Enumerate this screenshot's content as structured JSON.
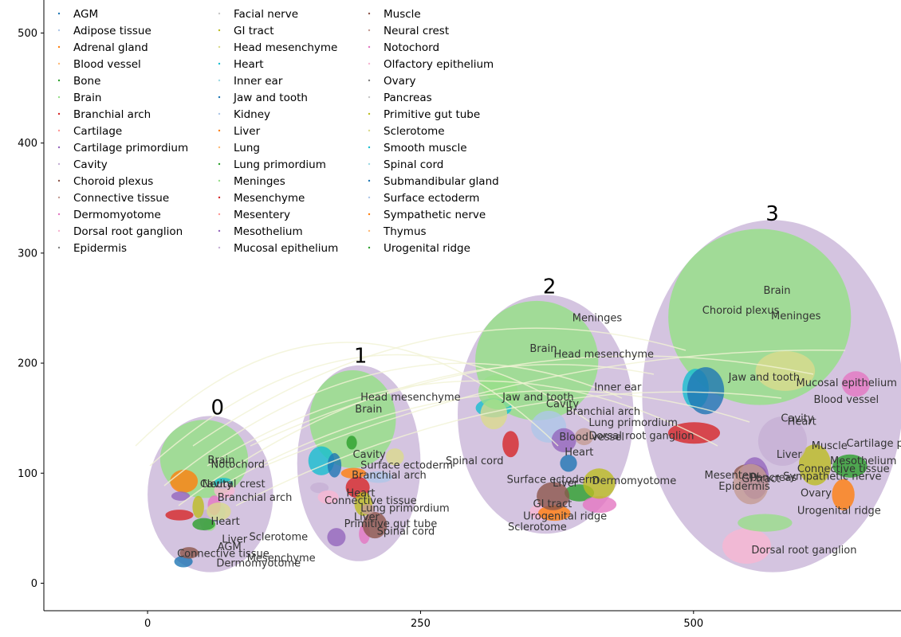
{
  "chart_data": {
    "type": "scatter",
    "title": "",
    "xlabel": "",
    "ylabel": "",
    "xlim": [
      -95,
      690
    ],
    "ylim": [
      -25,
      530
    ],
    "x_ticks": [
      0,
      250,
      500
    ],
    "y_ticks": [
      0,
      100,
      200,
      300,
      400,
      500
    ],
    "grid": false,
    "legend": {
      "placement": "top-left",
      "columns": 3,
      "entries": [
        {
          "name": "AGM",
          "color": "#1f77b4"
        },
        {
          "name": "Adipose tissue",
          "color": "#aec7e8"
        },
        {
          "name": "Adrenal gland",
          "color": "#ff7f0e"
        },
        {
          "name": "Blood vessel",
          "color": "#ffbb78"
        },
        {
          "name": "Bone",
          "color": "#2ca02c"
        },
        {
          "name": "Brain",
          "color": "#98df8a"
        },
        {
          "name": "Branchial arch",
          "color": "#d62728"
        },
        {
          "name": "Cartilage",
          "color": "#ff9896"
        },
        {
          "name": "Cartilage primordium",
          "color": "#9467bd"
        },
        {
          "name": "Cavity",
          "color": "#c5b0d5"
        },
        {
          "name": "Choroid plexus",
          "color": "#8c564b"
        },
        {
          "name": "Connective tissue",
          "color": "#c49c94"
        },
        {
          "name": "Dermomyotome",
          "color": "#e377c2"
        },
        {
          "name": "Dorsal root ganglion",
          "color": "#f7b6d2"
        },
        {
          "name": "Epidermis",
          "color": "#7f7f7f"
        },
        {
          "name": "Facial nerve",
          "color": "#c7c7c7"
        },
        {
          "name": "GI tract",
          "color": "#bcbd22"
        },
        {
          "name": "Head mesenchyme",
          "color": "#dbdb8d"
        },
        {
          "name": "Heart",
          "color": "#17becf"
        },
        {
          "name": "Inner ear",
          "color": "#9edae5"
        },
        {
          "name": "Jaw and tooth",
          "color": "#1f77b4"
        },
        {
          "name": "Kidney",
          "color": "#aec7e8"
        },
        {
          "name": "Liver",
          "color": "#ff7f0e"
        },
        {
          "name": "Lung",
          "color": "#ffbb78"
        },
        {
          "name": "Lung primordium",
          "color": "#2ca02c"
        },
        {
          "name": "Meninges",
          "color": "#98df8a"
        },
        {
          "name": "Mesenchyme",
          "color": "#d62728"
        },
        {
          "name": "Mesentery",
          "color": "#ff9896"
        },
        {
          "name": "Mesothelium",
          "color": "#9467bd"
        },
        {
          "name": "Mucosal epithelium",
          "color": "#c5b0d5"
        },
        {
          "name": "Muscle",
          "color": "#8c564b"
        },
        {
          "name": "Neural crest",
          "color": "#c49c94"
        },
        {
          "name": "Notochord",
          "color": "#e377c2"
        },
        {
          "name": "Olfactory epithelium",
          "color": "#f7b6d2"
        },
        {
          "name": "Ovary",
          "color": "#7f7f7f"
        },
        {
          "name": "Pancreas",
          "color": "#c7c7c7"
        },
        {
          "name": "Primitive gut tube",
          "color": "#bcbd22"
        },
        {
          "name": "Sclerotome",
          "color": "#dbdb8d"
        },
        {
          "name": "Smooth muscle",
          "color": "#17becf"
        },
        {
          "name": "Spinal cord",
          "color": "#9edae5"
        },
        {
          "name": "Submandibular gland",
          "color": "#1f77b4"
        },
        {
          "name": "Surface ectoderm",
          "color": "#aec7e8"
        },
        {
          "name": "Sympathetic nerve",
          "color": "#ff7f0e"
        },
        {
          "name": "Thymus",
          "color": "#ffbb78"
        },
        {
          "name": "Urogenital ridge",
          "color": "#2ca02c"
        }
      ]
    },
    "sections": [
      {
        "stage": "0",
        "label_x": 58,
        "label_y": 160,
        "x": [
          0,
          115
        ],
        "y": [
          10,
          152
        ]
      },
      {
        "stage": "1",
        "label_x": 189,
        "label_y": 207,
        "x": [
          137,
          250
        ],
        "y": [
          20,
          198
        ]
      },
      {
        "stage": "2",
        "label_x": 362,
        "label_y": 270,
        "x": [
          284,
          445
        ],
        "y": [
          45,
          262
        ]
      },
      {
        "stage": "3",
        "label_x": 566,
        "label_y": 336,
        "x": [
          453,
          692
        ],
        "y": [
          10,
          330
        ]
      }
    ],
    "region_labels": [
      {
        "text": "Brain",
        "x": 55,
        "y": 109
      },
      {
        "text": "Notochord",
        "x": 58,
        "y": 105
      },
      {
        "text": "Neural crest",
        "x": 50,
        "y": 87
      },
      {
        "text": "Cavity",
        "x": 48,
        "y": 87
      },
      {
        "text": "Branchial arch",
        "x": 64,
        "y": 75
      },
      {
        "text": "Heart",
        "x": 58,
        "y": 53
      },
      {
        "text": "Liver",
        "x": 68,
        "y": 37
      },
      {
        "text": "Sclerotome",
        "x": 93,
        "y": 39
      },
      {
        "text": "AGM",
        "x": 64,
        "y": 30
      },
      {
        "text": "Connective tissue",
        "x": 27,
        "y": 24
      },
      {
        "text": "Mesenchyme",
        "x": 91,
        "y": 20
      },
      {
        "text": "Dermomyotome",
        "x": 63,
        "y": 15
      },
      {
        "text": "Head mesenchyme",
        "x": 195,
        "y": 166
      },
      {
        "text": "Brain",
        "x": 190,
        "y": 155
      },
      {
        "text": "Cavity",
        "x": 188,
        "y": 114
      },
      {
        "text": "Surface ectoderm",
        "x": 195,
        "y": 104
      },
      {
        "text": "Branchial arch",
        "x": 187,
        "y": 95
      },
      {
        "text": "Heart",
        "x": 182,
        "y": 79
      },
      {
        "text": "Connective tissue",
        "x": 162,
        "y": 72
      },
      {
        "text": "Lung primordium",
        "x": 195,
        "y": 65
      },
      {
        "text": "Liver",
        "x": 189,
        "y": 57
      },
      {
        "text": "Primitive gut tube",
        "x": 180,
        "y": 51
      },
      {
        "text": "Spinal cord",
        "x": 210,
        "y": 44
      },
      {
        "text": "Meninges",
        "x": 389,
        "y": 238
      },
      {
        "text": "Brain",
        "x": 350,
        "y": 210
      },
      {
        "text": "Head mesenchyme",
        "x": 372,
        "y": 205
      },
      {
        "text": "Inner ear",
        "x": 409,
        "y": 175
      },
      {
        "text": "Jaw and tooth",
        "x": 325,
        "y": 166
      },
      {
        "text": "Cavity",
        "x": 365,
        "y": 160
      },
      {
        "text": "Branchial arch",
        "x": 383,
        "y": 153
      },
      {
        "text": "Lung primordium",
        "x": 404,
        "y": 143
      },
      {
        "text": "Blood vessel",
        "x": 377,
        "y": 130
      },
      {
        "text": "Dorsal root ganglion",
        "x": 404,
        "y": 131
      },
      {
        "text": "Heart",
        "x": 382,
        "y": 116
      },
      {
        "text": "Spinal cord",
        "x": 273,
        "y": 108
      },
      {
        "text": "Surface ectoderm",
        "x": 329,
        "y": 91
      },
      {
        "text": "Liver",
        "x": 371,
        "y": 88
      },
      {
        "text": "Dermomyotome",
        "x": 407,
        "y": 90
      },
      {
        "text": "GI tract",
        "x": 353,
        "y": 69
      },
      {
        "text": "Urogenital ridge",
        "x": 344,
        "y": 58
      },
      {
        "text": "Sclerotome",
        "x": 330,
        "y": 48
      },
      {
        "text": "Brain",
        "x": 564,
        "y": 263
      },
      {
        "text": "Choroid plexus",
        "x": 508,
        "y": 245
      },
      {
        "text": "Meninges",
        "x": 571,
        "y": 240
      },
      {
        "text": "Jaw and tooth",
        "x": 532,
        "y": 184
      },
      {
        "text": "Mucosal epithelium",
        "x": 594,
        "y": 179
      },
      {
        "text": "Blood vessel",
        "x": 610,
        "y": 164
      },
      {
        "text": "Cavity",
        "x": 580,
        "y": 147
      },
      {
        "text": "Heart",
        "x": 586,
        "y": 144
      },
      {
        "text": "Muscle",
        "x": 608,
        "y": 122
      },
      {
        "text": "Cartilage primordium",
        "x": 640,
        "y": 124
      },
      {
        "text": "Liver",
        "x": 576,
        "y": 114
      },
      {
        "text": "Mesothelium",
        "x": 625,
        "y": 108
      },
      {
        "text": "Connective tissue",
        "x": 595,
        "y": 101
      },
      {
        "text": "Mesentery",
        "x": 510,
        "y": 95
      },
      {
        "text": "GI tract",
        "x": 544,
        "y": 92
      },
      {
        "text": "Pancreas",
        "x": 552,
        "y": 93
      },
      {
        "text": "Sympathetic nerve",
        "x": 582,
        "y": 94
      },
      {
        "text": "Epidermis",
        "x": 523,
        "y": 85
      },
      {
        "text": "Ovary",
        "x": 598,
        "y": 79
      },
      {
        "text": "Urogenital ridge",
        "x": 595,
        "y": 63
      },
      {
        "text": "Dorsal root ganglion",
        "x": 553,
        "y": 27
      }
    ]
  }
}
